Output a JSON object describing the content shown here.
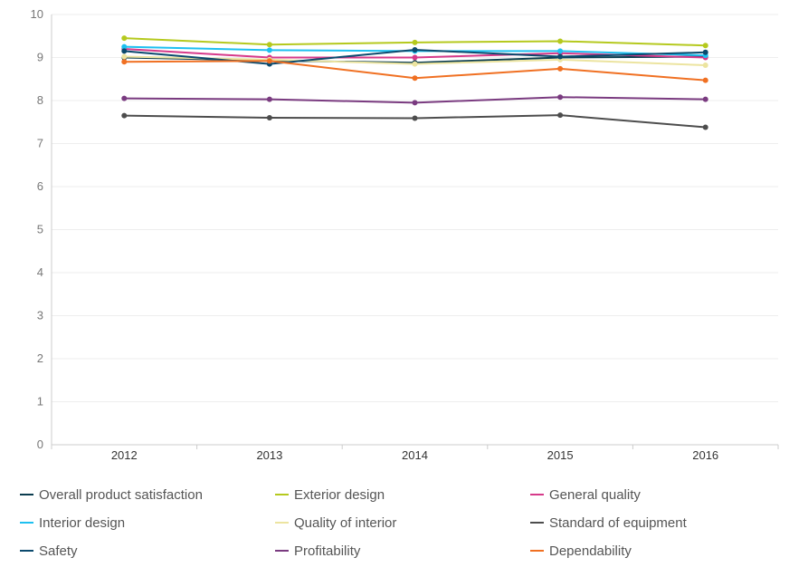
{
  "chart_data": {
    "type": "line",
    "title": "",
    "xlabel": "",
    "ylabel": "",
    "ylim": [
      0,
      10
    ],
    "y_ticks": [
      "0",
      "1",
      "2",
      "3",
      "4",
      "5",
      "6",
      "7",
      "8",
      "9",
      "10"
    ],
    "categories": [
      "2012",
      "2013",
      "2014",
      "2015",
      "2016"
    ],
    "grid": true,
    "legend_position": "bottom",
    "series": [
      {
        "name": "Overall product satisfaction",
        "color": "#0b3d4f",
        "values": [
          9.0,
          8.93,
          8.88,
          9.0,
          9.02
        ]
      },
      {
        "name": "Exterior design",
        "color": "#b5c91e",
        "values": [
          9.45,
          9.3,
          9.35,
          9.38,
          9.28
        ]
      },
      {
        "name": "General quality",
        "color": "#d63a8a",
        "values": [
          9.2,
          9.0,
          9.0,
          9.1,
          9.0
        ]
      },
      {
        "name": "Interior design",
        "color": "#1ec0f0",
        "values": [
          9.25,
          9.17,
          9.15,
          9.15,
          9.05
        ]
      },
      {
        "name": "Quality of interior",
        "color": "#ece4a0",
        "values": [
          9.02,
          8.95,
          8.85,
          8.95,
          8.82
        ]
      },
      {
        "name": "Standard of equipment",
        "color": "#4d4d4d",
        "values": [
          7.65,
          7.6,
          7.59,
          7.66,
          7.38
        ]
      },
      {
        "name": "Safety",
        "color": "#0c4a6e",
        "values": [
          9.15,
          8.85,
          9.18,
          9.02,
          9.12
        ]
      },
      {
        "name": "Profitability",
        "color": "#7a3b80",
        "values": [
          8.05,
          8.03,
          7.95,
          8.08,
          8.03
        ]
      },
      {
        "name": "Dependability",
        "color": "#f07022",
        "values": [
          8.9,
          8.92,
          8.52,
          8.74,
          8.47
        ]
      }
    ]
  }
}
